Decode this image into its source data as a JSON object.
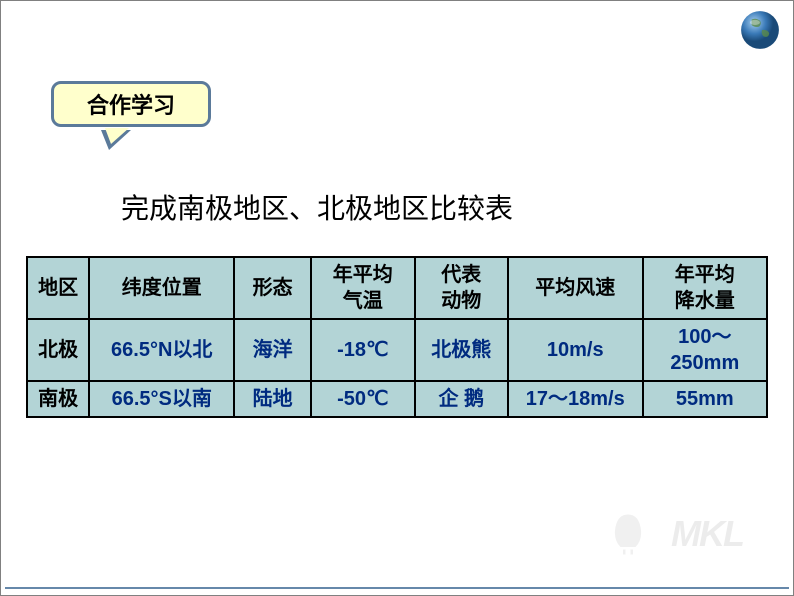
{
  "callout": {
    "label": "合作学习"
  },
  "title": "完成南极地区、北极地区比较表",
  "table": {
    "headers": [
      "地区",
      "纬度位置",
      "形态",
      "年平均\n气温",
      "代表\n动物",
      "平均风速",
      "年平均\n降水量"
    ],
    "rows": [
      {
        "label": "北极",
        "cells": [
          "66.5°N以北",
          "海洋",
          "-18℃",
          "北极熊",
          "10m/s",
          "100～250mm"
        ]
      },
      {
        "label": "南极",
        "cells": [
          "66.5°S以南",
          "陆地",
          "-50℃",
          "企  鹅",
          "17～18m/s",
          "55mm"
        ]
      }
    ]
  },
  "watermark": "MKL",
  "colors": {
    "callout_bg": "#ffffcc",
    "callout_border": "#5b7a9a",
    "cell_bg": "#b3d4d6",
    "data_text": "#002b80",
    "border": "#000000"
  }
}
